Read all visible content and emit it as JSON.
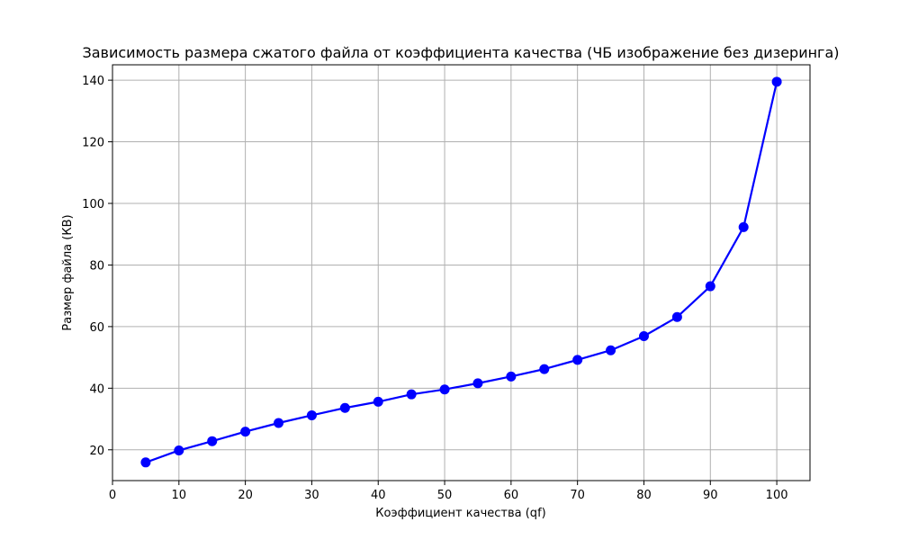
{
  "chart_data": {
    "type": "line",
    "title": "Зависимость размера сжатого файла от коэффициента качества (ЧБ изображение без дизеринга)",
    "xlabel": "Коэффициент качества (qf)",
    "ylabel": "Размер файла (КВ)",
    "xlim": [
      0,
      105
    ],
    "ylim": [
      10,
      145
    ],
    "xticks": [
      0,
      10,
      20,
      30,
      40,
      50,
      60,
      70,
      80,
      90,
      100
    ],
    "yticks": [
      20,
      40,
      60,
      80,
      100,
      120,
      140
    ],
    "grid": true,
    "series": [
      {
        "x": [
          5,
          10,
          15,
          20,
          25,
          30,
          35,
          40,
          45,
          50,
          55,
          60,
          65,
          70,
          75,
          80,
          85,
          90,
          95,
          100
        ],
        "y": [
          15.9,
          19.8,
          22.8,
          25.9,
          28.7,
          31.2,
          33.6,
          35.6,
          38.0,
          39.6,
          41.6,
          43.8,
          46.2,
          49.2,
          52.3,
          56.9,
          63.1,
          73.1,
          92.3,
          139.5
        ],
        "color": "#0000ff"
      }
    ]
  }
}
